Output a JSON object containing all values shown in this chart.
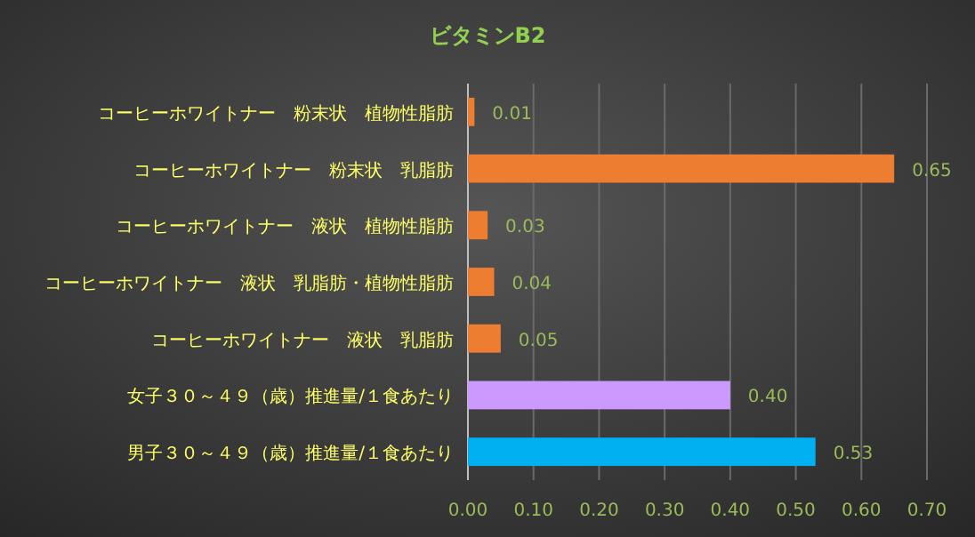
{
  "chart_data": {
    "type": "bar",
    "orientation": "horizontal",
    "title": "ビタミンB2",
    "categories": [
      "コーヒーホワイトナー　粉末状　植物性脂肪",
      "コーヒーホワイトナー　粉末状　乳脂肪",
      "コーヒーホワイトナー　液状　植物性脂肪",
      "コーヒーホワイトナー　液状　乳脂肪・植物性脂肪",
      "コーヒーホワイトナー　液状　乳脂肪",
      "女子３０～４９（歳）推進量/１食あたり",
      "男子３０～４９（歳）推進量/１食あたり"
    ],
    "values": [
      0.01,
      0.65,
      0.03,
      0.04,
      0.05,
      0.4,
      0.53
    ],
    "value_labels": [
      "0.01",
      "0.65",
      "0.03",
      "0.04",
      "0.05",
      "0.40",
      "0.53"
    ],
    "colors": [
      "#ed7d31",
      "#ed7d31",
      "#ed7d31",
      "#ed7d31",
      "#ed7d31",
      "#cc99ff",
      "#00b0f0"
    ],
    "xlim": [
      0,
      0.7
    ],
    "xticks": [
      {
        "value": 0,
        "label": "0.00"
      },
      {
        "value": 0.1,
        "label": "0.10"
      },
      {
        "value": 0.2,
        "label": "0.20"
      },
      {
        "value": 0.3,
        "label": "0.30"
      },
      {
        "value": 0.4,
        "label": "0.40"
      },
      {
        "value": 0.5,
        "label": "0.50"
      },
      {
        "value": 0.6,
        "label": "0.60"
      },
      {
        "value": 0.7,
        "label": "0.70"
      }
    ],
    "grid": "x"
  }
}
